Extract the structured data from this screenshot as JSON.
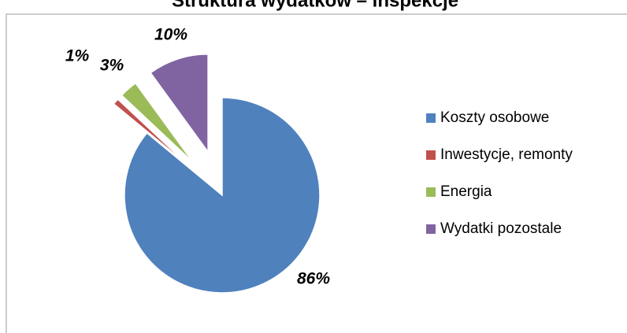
{
  "chart_data": {
    "type": "pie",
    "title": "Struktura wydatków – inspekcje",
    "categories": [
      "Koszty osobowe",
      "Inwestycje, remonty",
      "Energia",
      "Wydatki pozostale"
    ],
    "values": [
      86,
      1,
      3,
      10
    ],
    "value_labels": [
      "86%",
      "1%",
      "3%",
      "10%"
    ],
    "colors": [
      "#4f81bd",
      "#c0504d",
      "#9bbb59",
      "#8064a2"
    ],
    "legend": "right"
  }
}
